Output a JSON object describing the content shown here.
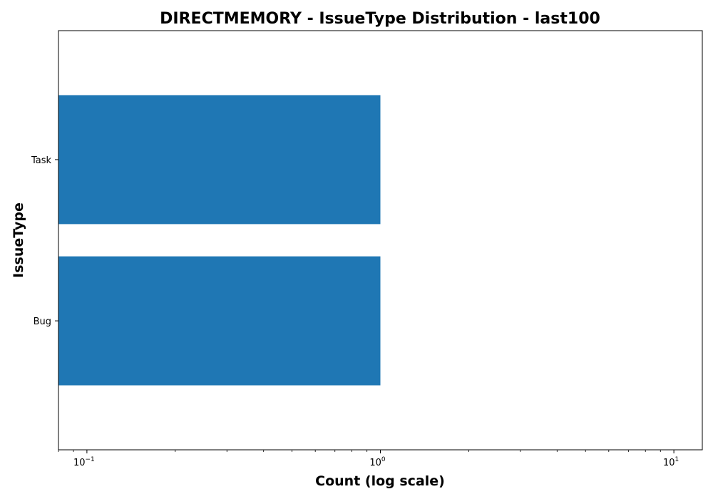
{
  "chart_data": {
    "type": "bar",
    "orientation": "horizontal",
    "title": "DIRECTMEMORY - IssueType Distribution - last100",
    "xlabel": "Count (log scale)",
    "ylabel": "IssueType",
    "x_scale": "log",
    "xlim": [
      0.08,
      12.5
    ],
    "categories": [
      "Task",
      "Bug"
    ],
    "values": [
      1,
      1
    ],
    "bar_color": "#1f77b4",
    "x_ticks": [
      {
        "value": 0.1,
        "base": "10",
        "exp": "−1"
      },
      {
        "value": 1,
        "base": "10",
        "exp": "0"
      },
      {
        "value": 10,
        "base": "10",
        "exp": "1"
      }
    ],
    "grid": false,
    "legend": "none"
  }
}
